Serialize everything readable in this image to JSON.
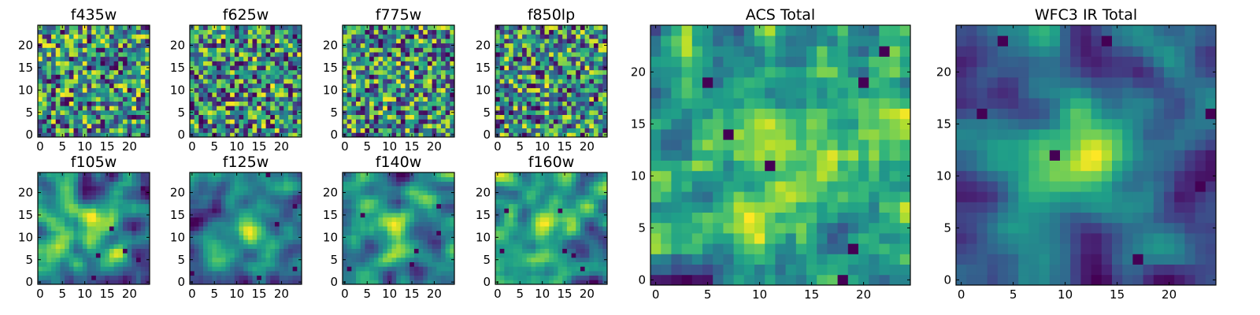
{
  "chart_data": [
    {
      "type": "heatmap",
      "title": "f435w",
      "grid_size": 25,
      "xlim": [
        0,
        24
      ],
      "ylim": [
        0,
        24
      ],
      "xticks": [
        0,
        5,
        10,
        15,
        20
      ],
      "yticks": [
        0,
        5,
        10,
        15,
        20
      ],
      "colormap": "viridis",
      "smoothness": 0.08,
      "central_brightness": 0.0,
      "seed": 11
    },
    {
      "type": "heatmap",
      "title": "f625w",
      "grid_size": 25,
      "xlim": [
        0,
        24
      ],
      "ylim": [
        0,
        24
      ],
      "xticks": [
        0,
        5,
        10,
        15,
        20
      ],
      "yticks": [
        0,
        5,
        10,
        15,
        20
      ],
      "colormap": "viridis",
      "smoothness": 0.08,
      "central_brightness": 0.0,
      "seed": 23
    },
    {
      "type": "heatmap",
      "title": "f775w",
      "grid_size": 25,
      "xlim": [
        0,
        24
      ],
      "ylim": [
        0,
        24
      ],
      "xticks": [
        0,
        5,
        10,
        15,
        20
      ],
      "yticks": [
        0,
        5,
        10,
        15,
        20
      ],
      "colormap": "viridis",
      "smoothness": 0.1,
      "central_brightness": 0.05,
      "seed": 37
    },
    {
      "type": "heatmap",
      "title": "f850lp",
      "grid_size": 25,
      "xlim": [
        0,
        24
      ],
      "ylim": [
        0,
        24
      ],
      "xticks": [
        0,
        5,
        10,
        15,
        20
      ],
      "yticks": [
        0,
        5,
        10,
        15,
        20
      ],
      "colormap": "viridis",
      "smoothness": 0.1,
      "central_brightness": 0.05,
      "seed": 41
    },
    {
      "type": "heatmap",
      "title": "f105w",
      "grid_size": 25,
      "xlim": [
        0,
        24
      ],
      "ylim": [
        0,
        24
      ],
      "xticks": [
        0,
        5,
        10,
        15,
        20
      ],
      "yticks": [
        0,
        5,
        10,
        15,
        20
      ],
      "colormap": "viridis",
      "smoothness": 0.45,
      "central_brightness": 0.15,
      "seed": 53
    },
    {
      "type": "heatmap",
      "title": "f125w",
      "grid_size": 25,
      "xlim": [
        0,
        24
      ],
      "ylim": [
        0,
        24
      ],
      "xticks": [
        0,
        5,
        10,
        15,
        20
      ],
      "yticks": [
        0,
        5,
        10,
        15,
        20
      ],
      "colormap": "viridis",
      "smoothness": 0.5,
      "central_brightness": 0.2,
      "seed": 67
    },
    {
      "type": "heatmap",
      "title": "f140w",
      "grid_size": 25,
      "xlim": [
        0,
        24
      ],
      "ylim": [
        0,
        24
      ],
      "xticks": [
        0,
        5,
        10,
        15,
        20
      ],
      "yticks": [
        0,
        5,
        10,
        15,
        20
      ],
      "colormap": "viridis",
      "smoothness": 0.5,
      "central_brightness": 0.15,
      "seed": 71
    },
    {
      "type": "heatmap",
      "title": "f160w",
      "grid_size": 25,
      "xlim": [
        0,
        24
      ],
      "ylim": [
        0,
        24
      ],
      "xticks": [
        0,
        5,
        10,
        15,
        20
      ],
      "yticks": [
        0,
        5,
        10,
        15,
        20
      ],
      "colormap": "viridis",
      "smoothness": 0.5,
      "central_brightness": 0.25,
      "seed": 83
    },
    {
      "type": "heatmap",
      "title": "ACS Total",
      "grid_size": 25,
      "xlim": [
        0,
        24
      ],
      "ylim": [
        0,
        24
      ],
      "xticks": [
        0,
        5,
        10,
        15,
        20
      ],
      "yticks": [
        0,
        5,
        10,
        15,
        20
      ],
      "colormap": "viridis",
      "smoothness": 0.3,
      "central_brightness": 0.15,
      "seed": 97
    },
    {
      "type": "heatmap",
      "title": "WFC3 IR Total",
      "grid_size": 25,
      "xlim": [
        0,
        24
      ],
      "ylim": [
        0,
        24
      ],
      "xticks": [
        0,
        5,
        10,
        15,
        20
      ],
      "yticks": [
        0,
        5,
        10,
        15,
        20
      ],
      "colormap": "viridis",
      "smoothness": 0.6,
      "central_brightness": 0.45,
      "seed": 101
    }
  ]
}
